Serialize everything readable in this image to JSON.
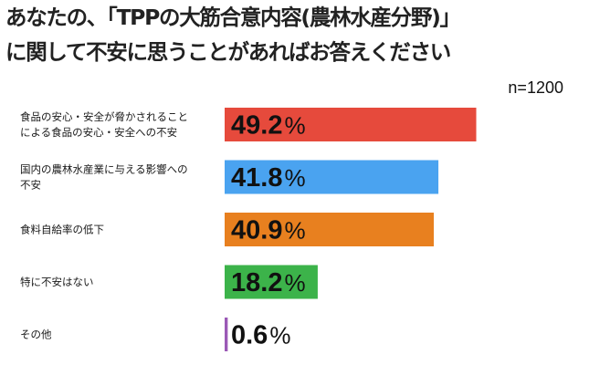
{
  "chart_data": {
    "type": "bar",
    "orientation": "horizontal",
    "title_lines": [
      "あなたの、「TPPの大筋合意内容(農林水産分野)」",
      "に関して不安に思うことがあればお答えください"
    ],
    "sample_size": "n=1200",
    "unit": "%",
    "categories": [
      [
        "食品の安心・安全が脅かされること",
        "による食品の安心・安全への不安"
      ],
      [
        "国内の農林水産業に与える影響への",
        "不安"
      ],
      [
        "食料自給率の低下"
      ],
      [
        "特に不安はない"
      ],
      [
        "その他"
      ]
    ],
    "values": [
      49.2,
      41.8,
      40.9,
      18.2,
      0.6
    ],
    "value_labels": [
      "49.2",
      "41.8",
      "40.9",
      "18.2",
      "0.6"
    ],
    "bar_colors": [
      "#e64a3c",
      "#4aa3f0",
      "#e8801f",
      "#3cb34a",
      "#9b59b6"
    ],
    "xlim": [
      0,
      100
    ],
    "grid": false,
    "legend": "none"
  }
}
